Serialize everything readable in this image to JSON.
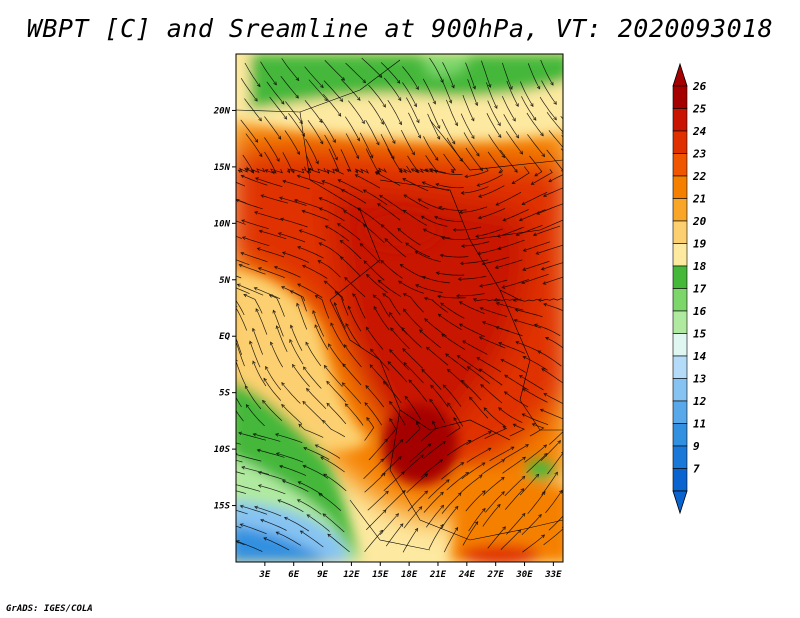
{
  "title": "WBPT [C] and Sreamline at 900hPa, VT: 2020093018",
  "footer": "GrADS: IGES/COLA",
  "map": {
    "lat_labels": [
      "20N",
      "15N",
      "10N",
      "5N",
      "EQ",
      "5S",
      "10S",
      "15S"
    ],
    "lat_values": [
      20,
      15,
      10,
      5,
      0,
      -5,
      -10,
      -15
    ],
    "lon_labels": [
      "3E",
      "6E",
      "9E",
      "12E",
      "15E",
      "18E",
      "21E",
      "24E",
      "27E",
      "30E",
      "33E"
    ],
    "lon_values": [
      3,
      6,
      9,
      12,
      15,
      18,
      21,
      24,
      27,
      30,
      33
    ],
    "lat_range": [
      -20,
      25
    ],
    "lon_range": [
      0,
      34
    ]
  },
  "colorbar": {
    "labels": [
      "26",
      "25",
      "24",
      "23",
      "22",
      "21",
      "20",
      "19",
      "18",
      "17",
      "16",
      "15",
      "14",
      "13",
      "12",
      "11",
      "9",
      "7"
    ],
    "colors": [
      "#a50000",
      "#c81400",
      "#e03000",
      "#f05500",
      "#f58000",
      "#f9a528",
      "#fcd070",
      "#fde9a0",
      "#45b83a",
      "#7cd66a",
      "#b0eaa0",
      "#e0f6f0",
      "#b4dcf8",
      "#86c3f2",
      "#58a8ea",
      "#3290e0",
      "#1a78d8",
      "#0a64d0"
    ],
    "arrow_top_color": "#a50000",
    "arrow_bottom_color": "#0a64d0"
  }
}
